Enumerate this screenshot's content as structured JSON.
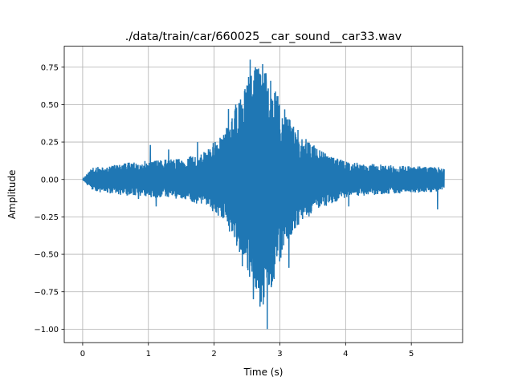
{
  "chart_data": {
    "type": "line",
    "title": "./data/train/car/660025__car_sound__car33.wav",
    "xlabel": "Time (s)",
    "ylabel": "Amplitude",
    "xlim": [
      -0.28,
      5.78
    ],
    "ylim": [
      -1.09,
      0.89
    ],
    "xticks": [
      0,
      1,
      2,
      3,
      4,
      5
    ],
    "xtick_labels": [
      "0",
      "1",
      "2",
      "3",
      "4",
      "5"
    ],
    "yticks": [
      -1.0,
      -0.75,
      -0.5,
      -0.25,
      0.0,
      0.25,
      0.5,
      0.75
    ],
    "ytick_labels": [
      "−1.00",
      "−0.75",
      "−0.50",
      "−0.25",
      "0.00",
      "0.25",
      "0.50",
      "0.75"
    ],
    "grid": true,
    "legend": "none",
    "series_color": "#1f77b4",
    "signal": {
      "start_s": 0.0,
      "end_s": 5.5,
      "envelope": [
        {
          "t": 0.0,
          "max": 0.0,
          "min": 0.0
        },
        {
          "t": 0.05,
          "max": 0.03,
          "min": -0.03
        },
        {
          "t": 0.15,
          "max": 0.08,
          "min": -0.08
        },
        {
          "t": 0.5,
          "max": 0.1,
          "min": -0.1
        },
        {
          "t": 1.0,
          "max": 0.13,
          "min": -0.12
        },
        {
          "t": 1.5,
          "max": 0.14,
          "min": -0.13
        },
        {
          "t": 1.8,
          "max": 0.18,
          "min": -0.17
        },
        {
          "t": 2.0,
          "max": 0.25,
          "min": -0.22
        },
        {
          "t": 2.2,
          "max": 0.35,
          "min": -0.32
        },
        {
          "t": 2.4,
          "max": 0.55,
          "min": -0.5
        },
        {
          "t": 2.6,
          "max": 0.78,
          "min": -0.72
        },
        {
          "t": 2.75,
          "max": 0.8,
          "min": -0.85
        },
        {
          "t": 2.9,
          "max": 0.62,
          "min": -0.7
        },
        {
          "t": 3.1,
          "max": 0.45,
          "min": -0.45
        },
        {
          "t": 3.3,
          "max": 0.32,
          "min": -0.3
        },
        {
          "t": 3.6,
          "max": 0.2,
          "min": -0.2
        },
        {
          "t": 4.0,
          "max": 0.12,
          "min": -0.12
        },
        {
          "t": 4.5,
          "max": 0.1,
          "min": -0.1
        },
        {
          "t": 5.0,
          "max": 0.09,
          "min": -0.09
        },
        {
          "t": 5.5,
          "max": 0.08,
          "min": -0.08
        }
      ],
      "peaks": [
        {
          "t": 2.55,
          "y": 0.8
        },
        {
          "t": 2.63,
          "y": 0.75
        },
        {
          "t": 2.74,
          "y": 0.77
        },
        {
          "t": 2.79,
          "y": 0.7
        },
        {
          "t": 2.81,
          "y": -1.0
        },
        {
          "t": 2.7,
          "y": -0.85
        },
        {
          "t": 2.87,
          "y": -0.72
        },
        {
          "t": 2.6,
          "y": -0.8
        },
        {
          "t": 2.33,
          "y": 0.5
        },
        {
          "t": 2.22,
          "y": 0.47
        },
        {
          "t": 3.11,
          "y": 0.4
        },
        {
          "t": 3.14,
          "y": -0.59
        },
        {
          "t": 2.43,
          "y": -0.58
        },
        {
          "t": 0.85,
          "y": -0.13
        },
        {
          "t": 1.03,
          "y": 0.23
        },
        {
          "t": 1.31,
          "y": 0.2
        },
        {
          "t": 1.75,
          "y": 0.25
        },
        {
          "t": 1.12,
          "y": -0.18
        },
        {
          "t": 4.05,
          "y": -0.18
        },
        {
          "t": 5.4,
          "y": -0.2
        }
      ]
    }
  }
}
